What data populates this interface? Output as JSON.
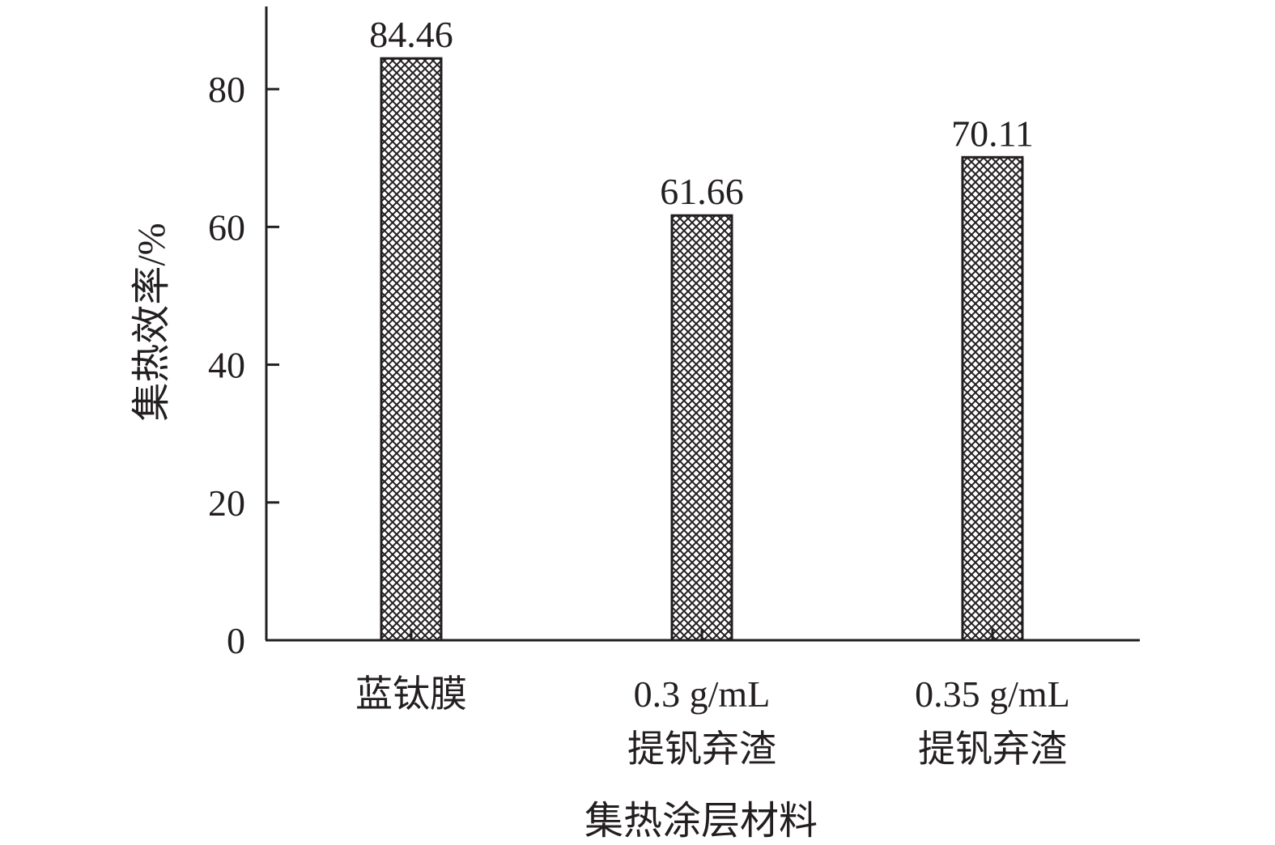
{
  "chart_data": {
    "type": "bar",
    "title": "",
    "xlabel": "集热涂层材料",
    "ylabel": "集热效率/%",
    "ylim": [
      0,
      92
    ],
    "yticks": [
      0,
      20,
      40,
      60,
      80
    ],
    "grid": false,
    "legend": "none",
    "categories": [
      [
        "蓝钛膜"
      ],
      [
        "0.3 g/mL",
        "提钒弃渣"
      ],
      [
        "0.35 g/mL",
        "提钒弃渣"
      ]
    ],
    "values": [
      84.46,
      61.66,
      70.11
    ],
    "value_labels": [
      "84.46",
      "61.66",
      "70.11"
    ],
    "bar_pattern": "crosshatch",
    "colors": {
      "axis": "#231f20",
      "bar_stroke": "#231f20",
      "hatch": "#231f20",
      "bar_fill": "#ffffff"
    }
  }
}
